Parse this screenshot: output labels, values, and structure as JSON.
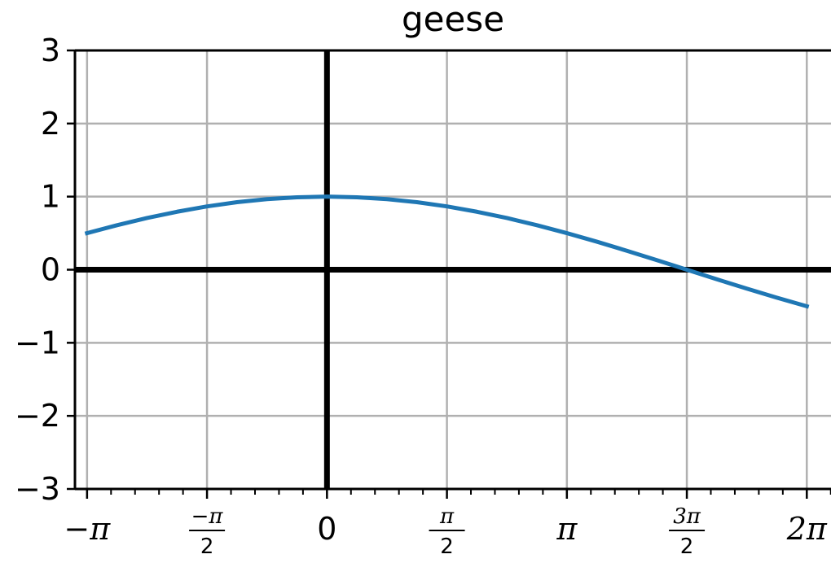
{
  "chart_data": {
    "type": "line",
    "title": "geese",
    "xlabel": "",
    "ylabel": "",
    "xlim": [
      -3.3,
      6.6
    ],
    "ylim": [
      -3,
      3
    ],
    "grid": true,
    "x_ticks": [
      {
        "value": -3.14159,
        "label": "−π"
      },
      {
        "value": -1.5708,
        "label": "−π/2",
        "num": "−π",
        "den": "2"
      },
      {
        "value": 0,
        "label": "0"
      },
      {
        "value": 1.5708,
        "label": "π/2",
        "num": "π",
        "den": "2"
      },
      {
        "value": 3.14159,
        "label": "π"
      },
      {
        "value": 4.71239,
        "label": "3π/2",
        "num": "3π",
        "den": "2"
      },
      {
        "value": 6.28319,
        "label": "2π"
      }
    ],
    "y_ticks": [
      {
        "value": 3,
        "label": "3"
      },
      {
        "value": 2,
        "label": "2"
      },
      {
        "value": 1,
        "label": "1"
      },
      {
        "value": 0,
        "label": "0"
      },
      {
        "value": -1,
        "label": "−1"
      },
      {
        "value": -2,
        "label": "−2"
      },
      {
        "value": -3,
        "label": "−3"
      }
    ],
    "series": [
      {
        "color": "#1f77b4",
        "x": [
          -3.1416,
          -2.7489,
          -2.3562,
          -1.9635,
          -1.5708,
          -1.1781,
          -0.7854,
          -0.3927,
          0.0,
          0.3927,
          0.7854,
          1.1781,
          1.5708,
          1.9635,
          2.3562,
          2.7489,
          3.1416,
          3.5343,
          3.927,
          4.3197,
          4.7124,
          5.1051,
          5.4978,
          5.8905,
          6.2832
        ],
        "y": [
          0.5,
          0.609,
          0.707,
          0.793,
          0.866,
          0.924,
          0.966,
          0.991,
          1.0,
          0.991,
          0.966,
          0.924,
          0.866,
          0.793,
          0.707,
          0.609,
          0.5,
          0.383,
          0.259,
          0.131,
          0.0,
          -0.131,
          -0.259,
          -0.383,
          -0.5
        ]
      }
    ]
  }
}
